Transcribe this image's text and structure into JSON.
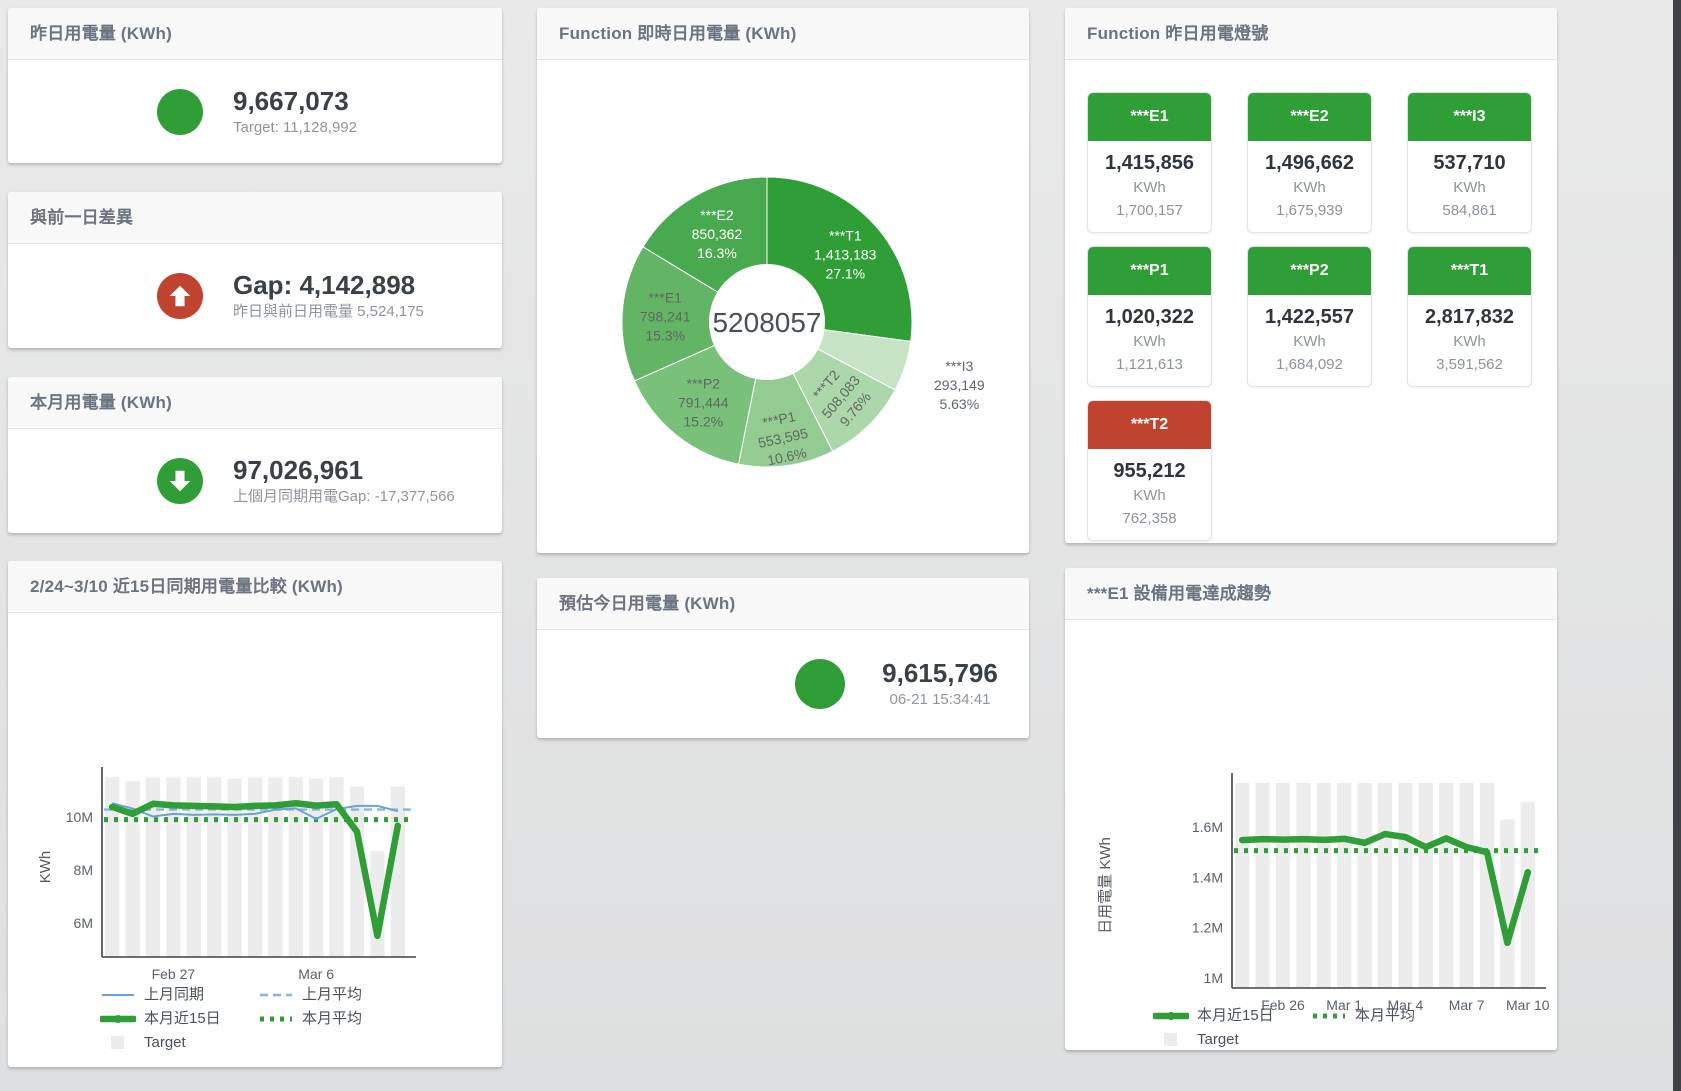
{
  "colors": {
    "green": "#2f9e37",
    "red": "#c0432f",
    "panel_title": "#6b7480",
    "value_dark": "#3a4045",
    "subtitle_gray": "#8f959b",
    "bar_gray": "#ececec",
    "blue": "#69a3d6",
    "blue_light": "#86b6e0",
    "axis": "#3d4245",
    "tick_text": "#5a6169",
    "legend_text": "#4a5158"
  },
  "panels": {
    "yesterday": {
      "title": "昨日用電量 (KWh)",
      "value": "9,667,073",
      "subtitle": "Target: 11,128,992"
    },
    "day_gap": {
      "title": "與前一日差異",
      "value": "Gap: 4,142,898",
      "subtitle": "昨日與前日用電量 5,524,175",
      "direction": "up"
    },
    "month": {
      "title": "本月用電量 (KWh)",
      "value": "97,026,961",
      "subtitle": "上個月同期用電Gap: -17,377,566",
      "direction": "down"
    },
    "compare15": {
      "title": "2/24~3/10 近15日同期用電量比較 (KWh)"
    },
    "realtime_pie": {
      "title": "Function 即時日用電量 (KWh)"
    },
    "estimate": {
      "title": "預估今日用電量 (KWh)",
      "value": "9,615,796",
      "subtitle": "06-21 15:34:41"
    },
    "lamps": {
      "title": "Function 昨日用電燈號",
      "unit_label": "KWh",
      "cards": [
        {
          "label": "***E1",
          "value": "1,415,856",
          "target": "1,700,157",
          "status": "green"
        },
        {
          "label": "***E2",
          "value": "1,496,662",
          "target": "1,675,939",
          "status": "green"
        },
        {
          "label": "***I3",
          "value": "537,710",
          "target": "584,861",
          "status": "green"
        },
        {
          "label": "***P1",
          "value": "1,020,322",
          "target": "1,121,613",
          "status": "green"
        },
        {
          "label": "***P2",
          "value": "1,422,557",
          "target": "1,684,092",
          "status": "green"
        },
        {
          "label": "***T1",
          "value": "2,817,832",
          "target": "3,591,562",
          "status": "green"
        },
        {
          "label": "***T2",
          "value": "955,212",
          "target": "762,358",
          "status": "red"
        }
      ]
    },
    "e1trend": {
      "title": "***E1 設備用電達成趨勢"
    }
  },
  "chart_data": [
    {
      "id": "realtime_pie",
      "type": "pie",
      "title": "Function 即時日用電量 (KWh)",
      "center_label": "5208057",
      "slices": [
        {
          "name": "***T1",
          "value": 1413183,
          "value_label": "1,413,183",
          "pct_label": "27.1%",
          "color": "#2f9e37",
          "text_mode": "light",
          "label_r": 104,
          "rot": 0
        },
        {
          "name": "***I3",
          "value": 293149,
          "value_label": "293,149",
          "pct_label": "5.63%",
          "color": "#c6e4c5",
          "text_mode": "outside",
          "label_r": 202,
          "rot": 0
        },
        {
          "name": "***T2",
          "value": 508083,
          "value_label": "508,083",
          "pct_label": "9.76%",
          "color": "#abd7ab",
          "text_mode": "dark",
          "label_r": 104,
          "rot": -50
        },
        {
          "name": "***P1",
          "value": 553595,
          "value_label": "553,595",
          "pct_label": "10.6%",
          "color": "#93cb93",
          "text_mode": "dark",
          "label_r": 116,
          "rot": -12
        },
        {
          "name": "***P2",
          "value": 791444,
          "value_label": "791,444",
          "pct_label": "15.2%",
          "color": "#79c07a",
          "text_mode": "dark",
          "label_r": 102,
          "rot": 0
        },
        {
          "name": "***E1",
          "value": 798241,
          "value_label": "798,241",
          "pct_label": "15.3%",
          "color": "#63b465",
          "text_mode": "dark",
          "label_r": 102,
          "rot": 0
        },
        {
          "name": "***E2",
          "value": 850362,
          "value_label": "850,362",
          "pct_label": "16.3%",
          "color": "#49a94f",
          "text_mode": "light",
          "label_r": 102,
          "rot": 0
        }
      ]
    },
    {
      "id": "compare15",
      "type": "line",
      "title": "2/24~3/10 近15日同期用電量比較 (KWh)",
      "n": 15,
      "ylabel": "KWh",
      "ylim": [
        4.72,
        11.51
      ],
      "yticks": [
        {
          "v": 6,
          "label": "6M"
        },
        {
          "v": 8,
          "label": "8M"
        },
        {
          "v": 10,
          "label": "10M"
        }
      ],
      "x_ticks": [
        {
          "label": "Feb 27",
          "day": 4
        },
        {
          "label": "Mar 6",
          "day": 11
        }
      ],
      "unit": "M KWh",
      "target_bars": [
        11.5,
        11.35,
        11.5,
        11.5,
        11.5,
        11.5,
        11.45,
        11.5,
        11.5,
        11.5,
        11.45,
        11.5,
        11.15,
        8.72,
        11.15
      ],
      "series": [
        {
          "name": "上月同期",
          "style": "thin",
          "color": "#69a3d6",
          "values": [
            10.52,
            10.32,
            10.02,
            10.12,
            10.08,
            10.1,
            10.08,
            10.12,
            10.28,
            10.33,
            9.93,
            10.3,
            10.42,
            10.42,
            10.22
          ]
        },
        {
          "name": "上月平均",
          "style": "dashed",
          "color": "#86b6e0",
          "value": 10.28
        },
        {
          "name": "本月近15日",
          "style": "thick",
          "color": "#2f9e37",
          "values": [
            10.38,
            10.12,
            10.5,
            10.44,
            10.42,
            10.4,
            10.38,
            10.42,
            10.44,
            10.52,
            10.43,
            10.48,
            9.44,
            5.52,
            9.67
          ]
        },
        {
          "name": "本月平均",
          "style": "dotted",
          "color": "#2f9e37",
          "value": 9.9
        }
      ],
      "legend": [
        {
          "label": "上月同期",
          "style": "thin",
          "color": "#69a3d6"
        },
        {
          "label": "上月平均",
          "style": "dashed",
          "color": "#86b6e0"
        },
        {
          "label": "本月近15日",
          "style": "thick",
          "color": "#2f9e37"
        },
        {
          "label": "本月平均",
          "style": "dotted",
          "color": "#2f9e37"
        },
        {
          "label": "Target",
          "style": "bar",
          "color": "#ececec"
        }
      ]
    },
    {
      "id": "e1trend",
      "type": "line",
      "title": "***E1 設備用電達成趨勢",
      "n": 15,
      "ylabel": "日用電量 KWh",
      "ylim": [
        0.96,
        1.775
      ],
      "yticks": [
        {
          "v": 1,
          "label": "1M"
        },
        {
          "v": 1.2,
          "label": "1.2M"
        },
        {
          "v": 1.4,
          "label": "1.4M"
        },
        {
          "v": 1.6,
          "label": "1.6M"
        }
      ],
      "x_ticks": [
        {
          "label": "Feb 26",
          "day": 3
        },
        {
          "label": "Mar 1",
          "day": 6
        },
        {
          "label": "Mar 4",
          "day": 9
        },
        {
          "label": "Mar 7",
          "day": 12
        },
        {
          "label": "Mar 10",
          "day": 15
        }
      ],
      "unit": "M KWh",
      "target_bars": [
        1.78,
        1.78,
        1.78,
        1.78,
        1.78,
        1.78,
        1.78,
        1.78,
        1.78,
        1.78,
        1.78,
        1.78,
        1.78,
        1.63,
        1.7
      ],
      "series": [
        {
          "name": "本月近15日",
          "style": "thick",
          "color": "#2f9e37",
          "values": [
            1.548,
            1.552,
            1.55,
            1.552,
            1.549,
            1.553,
            1.537,
            1.572,
            1.56,
            1.52,
            1.555,
            1.52,
            1.5,
            1.14,
            1.42
          ]
        },
        {
          "name": "本月平均",
          "style": "dotted",
          "color": "#2f9e37",
          "value": 1.506
        }
      ],
      "legend": [
        {
          "label": "本月近15日",
          "style": "thick",
          "color": "#2f9e37"
        },
        {
          "label": "本月平均",
          "style": "dotted",
          "color": "#2f9e37"
        },
        {
          "label": "Target",
          "style": "bar",
          "color": "#ececec"
        }
      ]
    }
  ]
}
